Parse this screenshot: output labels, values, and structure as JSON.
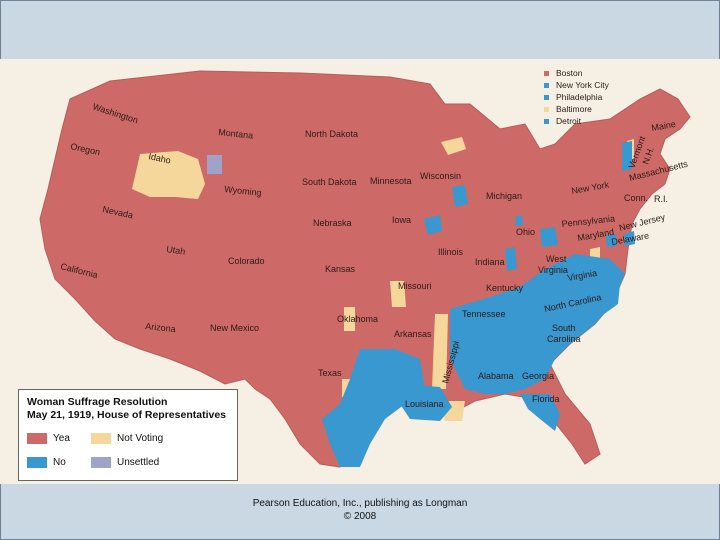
{
  "colors": {
    "yea": "#cd6a67",
    "not_voting": "#f6d79b",
    "no": "#3898cf",
    "unsettled": "#a0a2c8",
    "water": "#cde9f3",
    "background": "#f5efe4",
    "slide": "#c9d8e3"
  },
  "legend": {
    "title_line1": "Woman Suffrage Resolution",
    "title_line2": "May 21, 1919, House of Representatives",
    "items": [
      {
        "label": "Yea",
        "color_key": "yea"
      },
      {
        "label": "Not Voting",
        "color_key": "not_voting"
      },
      {
        "label": "No",
        "color_key": "no"
      },
      {
        "label": "Unsettled",
        "color_key": "unsettled"
      }
    ]
  },
  "city_key": [
    {
      "label": "Boston",
      "color": "#cd6a67"
    },
    {
      "label": "New York City",
      "color": "#3898cf"
    },
    {
      "label": "Philadelphia",
      "color": "#3898cf"
    },
    {
      "label": "Baltimore",
      "color": "#f6d79b"
    },
    {
      "label": "Detroit",
      "color": "#3898cf"
    }
  ],
  "states": {
    "washington": "Washington",
    "oregon": "Oregon",
    "california": "California",
    "nevada": "Nevada",
    "idaho": "Idaho",
    "montana": "Montana",
    "wyoming": "Wyoming",
    "utah": "Utah",
    "arizona": "Arizona",
    "colorado": "Colorado",
    "new_mexico": "New Mexico",
    "north_dakota": "North Dakota",
    "south_dakota": "South Dakota",
    "nebraska": "Nebraska",
    "kansas": "Kansas",
    "oklahoma": "Oklahoma",
    "texas": "Texas",
    "minnesota": "Minnesota",
    "iowa": "Iowa",
    "missouri": "Missouri",
    "arkansas": "Arkansas",
    "louisiana": "Louisiana",
    "wisconsin": "Wisconsin",
    "illinois": "Illinois",
    "michigan": "Michigan",
    "indiana": "Indiana",
    "ohio": "Ohio",
    "kentucky": "Kentucky",
    "tennessee": "Tennessee",
    "mississippi": "Mississippi",
    "alabama": "Alabama",
    "georgia": "Georgia",
    "florida": "Florida",
    "south_carolina": "South Carolina",
    "north_carolina": "North Carolina",
    "virginia": "Virginia",
    "west_virginia": "West Virginia",
    "pennsylvania": "Pennsylvania",
    "new_york": "New York",
    "new_jersey": "New Jersey",
    "delaware": "Delaware",
    "maryland": "Maryland",
    "connecticut": "Conn.",
    "rhode_island": "R.I.",
    "massachusetts": "Massachusetts",
    "vermont": "Vermont",
    "new_hampshire": "N.H.",
    "maine": "Maine"
  },
  "credit": {
    "line1": "Pearson Education, Inc., publishing as Longman",
    "line2": "© 2008"
  }
}
